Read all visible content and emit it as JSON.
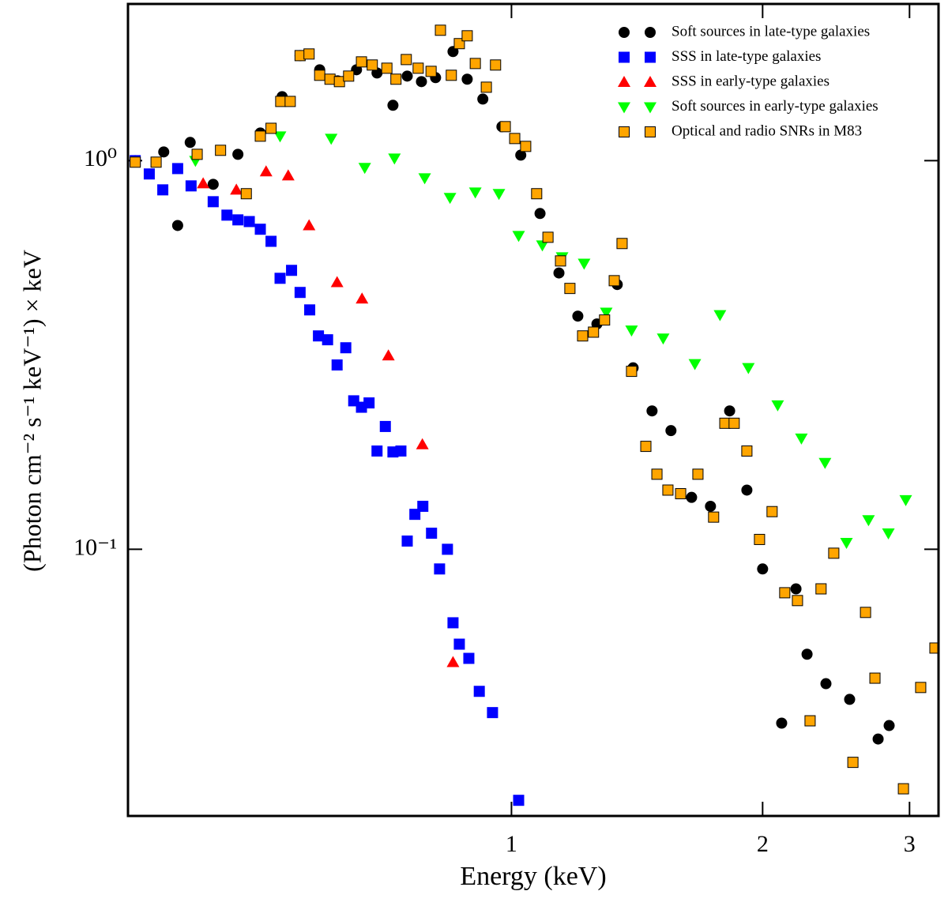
{
  "chart_data": {
    "type": "scatter",
    "xlabel": "Energy (keV)",
    "ylabel": "(Photon cm⁻² s⁻¹ keV⁻¹) × keV",
    "xlog": true,
    "ylog": true,
    "xlim": [
      0.347,
      3.25
    ],
    "ylim": [
      0.0206,
      2.53
    ],
    "xticks": [
      1,
      2,
      3
    ],
    "yticks": [
      {
        "value": 0.1,
        "label": "10⁻¹"
      },
      {
        "value": 1,
        "label": "10⁰"
      }
    ],
    "legend": "upper right",
    "series": [
      {
        "name": "Soft sources in late-type galaxies",
        "color": "#000000",
        "marker": "circle",
        "x": [
          0.354,
          0.383,
          0.398,
          0.412,
          0.439,
          0.47,
          0.5,
          0.531,
          0.558,
          0.589,
          0.619,
          0.652,
          0.69,
          0.721,
          0.75,
          0.78,
          0.811,
          0.851,
          0.885,
          0.924,
          0.974,
          1.026,
          1.082,
          1.14,
          1.201,
          1.266,
          1.339,
          1.399,
          1.474,
          1.553,
          1.644,
          1.732,
          1.826,
          1.915,
          2.0,
          2.108,
          2.193,
          2.261,
          2.382,
          2.543,
          2.751,
          2.836
        ],
        "y": [
          1.0,
          1.053,
          0.681,
          1.114,
          0.869,
          1.038,
          1.178,
          1.461,
          1.863,
          1.713,
          1.604,
          1.713,
          1.681,
          1.388,
          1.65,
          1.597,
          1.635,
          1.908,
          1.62,
          1.44,
          1.223,
          1.033,
          0.731,
          0.514,
          0.398,
          0.38,
          0.48,
          0.293,
          0.227,
          0.202,
          0.136,
          0.129,
          0.227,
          0.142,
          0.089,
          0.0357,
          0.0791,
          0.0537,
          0.0451,
          0.0411,
          0.0325,
          0.0352
        ]
      },
      {
        "name": "SSS in late-type galaxies",
        "color": "#0000ff",
        "marker": "square",
        "x": [
          0.354,
          0.368,
          0.382,
          0.398,
          0.413,
          0.439,
          0.456,
          0.47,
          0.485,
          0.5,
          0.515,
          0.528,
          0.545,
          0.558,
          0.573,
          0.587,
          0.602,
          0.618,
          0.633,
          0.647,
          0.661,
          0.675,
          0.69,
          0.706,
          0.721,
          0.737,
          0.75,
          0.766,
          0.783,
          0.802,
          0.82,
          0.838,
          0.851,
          0.866,
          0.889,
          0.915,
          0.949,
          1.02
        ],
        "y": [
          1.0,
          0.924,
          0.841,
          0.954,
          0.861,
          0.784,
          0.724,
          0.704,
          0.697,
          0.666,
          0.62,
          0.498,
          0.522,
          0.458,
          0.413,
          0.354,
          0.346,
          0.298,
          0.33,
          0.241,
          0.232,
          0.238,
          0.179,
          0.207,
          0.178,
          0.179,
          0.105,
          0.123,
          0.129,
          0.11,
          0.089,
          0.1,
          0.0647,
          0.057,
          0.0524,
          0.0431,
          0.038,
          0.0226
        ]
      },
      {
        "name": "SSS in early-type galaxies",
        "color": "#ff0000",
        "marker": "triangle-up",
        "x": [
          0.427,
          0.468,
          0.508,
          0.54,
          0.572,
          0.618,
          0.662,
          0.712,
          0.782,
          0.851
        ],
        "y": [
          0.873,
          0.841,
          0.937,
          0.915,
          0.681,
          0.486,
          0.441,
          0.315,
          0.186,
          0.0512
        ]
      },
      {
        "name": "Soft sources in early-type galaxies",
        "color": "#00ff00",
        "marker": "triangle-down",
        "x": [
          0.418,
          0.528,
          0.608,
          0.667,
          0.724,
          0.787,
          0.844,
          0.905,
          0.966,
          1.02,
          1.089,
          1.15,
          1.222,
          1.299,
          1.393,
          1.52,
          1.659,
          1.778,
          1.923,
          2.085,
          2.226,
          2.376,
          2.521,
          2.679,
          2.83,
          2.969
        ],
        "y": [
          1.0,
          1.156,
          1.14,
          0.959,
          1.014,
          0.902,
          0.803,
          0.829,
          0.822,
          0.641,
          0.606,
          0.565,
          0.544,
          0.407,
          0.366,
          0.349,
          0.3,
          0.401,
          0.293,
          0.235,
          0.193,
          0.167,
          0.104,
          0.119,
          0.11,
          0.134
        ]
      },
      {
        "name": "Optical and radio SNRs in M83",
        "color": "#ffa500",
        "marker": "square",
        "x": [
          0.354,
          0.375,
          0.42,
          0.448,
          0.481,
          0.5,
          0.515,
          0.529,
          0.543,
          0.558,
          0.572,
          0.589,
          0.606,
          0.622,
          0.638,
          0.661,
          0.681,
          0.709,
          0.727,
          0.748,
          0.773,
          0.801,
          0.822,
          0.847,
          0.866,
          0.885,
          0.905,
          0.933,
          0.957,
          0.983,
          1.009,
          1.04,
          1.072,
          1.106,
          1.145,
          1.175,
          1.217,
          1.254,
          1.293,
          1.328,
          1.357,
          1.393,
          1.449,
          1.494,
          1.54,
          1.595,
          1.673,
          1.747,
          1.802,
          1.849,
          1.915,
          1.983,
          2.053,
          2.126,
          2.202,
          2.28,
          2.35,
          2.434,
          2.566,
          2.657,
          2.727,
          2.95,
          3.094,
          3.218
        ],
        "y": [
          0.991,
          0.991,
          1.038,
          1.063,
          0.822,
          1.156,
          1.211,
          1.42,
          1.42,
          1.863,
          1.881,
          1.658,
          1.62,
          1.597,
          1.65,
          1.795,
          1.762,
          1.729,
          1.62,
          1.82,
          1.729,
          1.697,
          2.165,
          1.658,
          2.0,
          2.095,
          1.778,
          1.545,
          1.762,
          1.223,
          1.14,
          1.088,
          0.822,
          0.635,
          0.552,
          0.469,
          0.354,
          0.362,
          0.389,
          0.491,
          0.612,
          0.287,
          0.184,
          0.156,
          0.142,
          0.139,
          0.156,
          0.121,
          0.211,
          0.211,
          0.179,
          0.106,
          0.125,
          0.0773,
          0.0738,
          0.0362,
          0.0791,
          0.0977,
          0.0283,
          0.0688,
          0.0466,
          0.0242,
          0.0441,
          0.0557
        ]
      }
    ]
  }
}
